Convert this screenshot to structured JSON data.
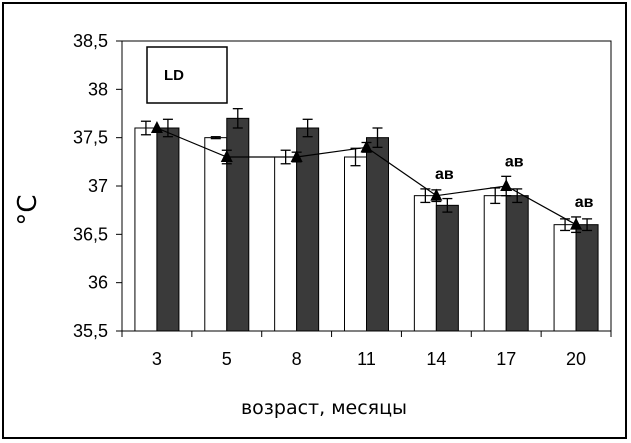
{
  "chart_data": {
    "type": "bar",
    "categories": [
      "3",
      "5",
      "8",
      "11",
      "14",
      "17",
      "20"
    ],
    "series": [
      {
        "values": [
          37.6,
          37.5,
          37.3,
          37.3,
          36.9,
          36.9,
          36.6
        ],
        "errors": [
          0.07,
          0.01,
          0.07,
          0.09,
          0.07,
          0.08,
          0.06
        ],
        "color": "#ffffff"
      },
      {
        "values": [
          37.6,
          37.7,
          37.6,
          37.5,
          36.8,
          36.9,
          36.6
        ],
        "errors": [
          0.09,
          0.1,
          0.09,
          0.1,
          0.07,
          0.07,
          0.06
        ],
        "color": "#3a3a3a"
      },
      {
        "type": "line",
        "values": [
          37.6,
          37.3,
          37.3,
          37.4,
          36.9,
          37.0,
          36.6
        ],
        "errors": [
          0.0,
          0.07,
          0.05,
          0.05,
          0.06,
          0.1,
          0.08
        ],
        "color": "#000000"
      }
    ],
    "ylim": [
      35.5,
      38.5
    ],
    "yticks": [
      "35,5",
      "36",
      "36,5",
      "37",
      "37,5",
      "38",
      "38,5"
    ],
    "ytick_values": [
      35.5,
      36,
      36.5,
      37,
      37.5,
      38,
      38.5
    ],
    "ylabel": "°C",
    "xlabel": "возраст, месяцы",
    "legend_box_label": "LD",
    "annotations": [
      {
        "category": "14",
        "text": "ав"
      },
      {
        "category": "17",
        "text": "ав"
      },
      {
        "category": "20",
        "text": "ав"
      }
    ],
    "grid": false
  }
}
